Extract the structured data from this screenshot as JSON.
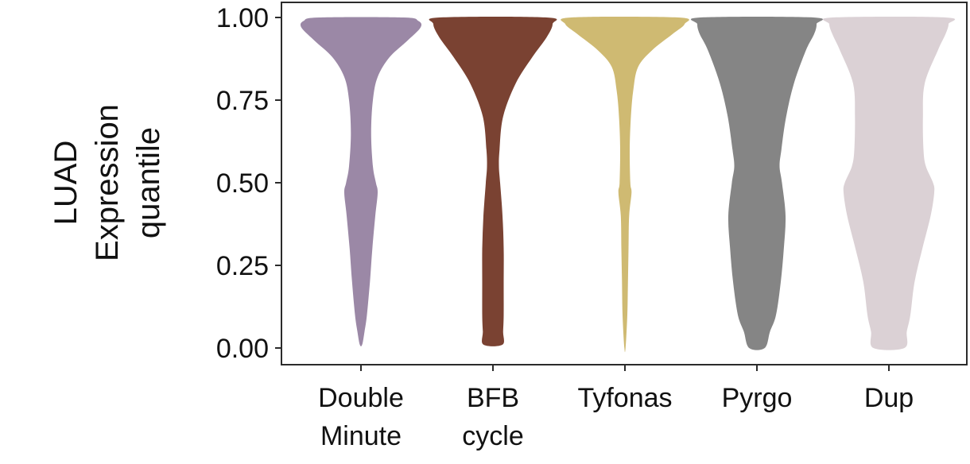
{
  "chart_data": {
    "type": "violin",
    "ylabel": [
      "LUAD",
      "Expression",
      "quantile"
    ],
    "ylim": [
      0,
      1
    ],
    "yticks": [
      "0.00",
      "0.25",
      "0.50",
      "0.75",
      "1.00"
    ],
    "grid": false,
    "categories": [
      [
        "Double",
        "Minute"
      ],
      [
        "BFB",
        "cycle"
      ],
      [
        "Tyfonas"
      ],
      [
        "Pyrgo"
      ],
      [
        "Dup"
      ]
    ],
    "colors": [
      "#9b88a6",
      "#7a4232",
      "#cfba72",
      "#858585",
      "#dbd1d5"
    ],
    "series": [
      {
        "min": 0.01,
        "max": 1.0,
        "profile": [
          [
            0.01,
            0.02
          ],
          [
            0.05,
            0.06
          ],
          [
            0.1,
            0.1
          ],
          [
            0.2,
            0.15
          ],
          [
            0.3,
            0.19
          ],
          [
            0.4,
            0.24
          ],
          [
            0.47,
            0.28
          ],
          [
            0.5,
            0.25
          ],
          [
            0.55,
            0.2
          ],
          [
            0.65,
            0.17
          ],
          [
            0.75,
            0.2
          ],
          [
            0.82,
            0.28
          ],
          [
            0.88,
            0.48
          ],
          [
            0.93,
            0.78
          ],
          [
            0.97,
            1.0
          ],
          [
            0.99,
            0.96
          ],
          [
            1.0,
            0.7
          ]
        ]
      },
      {
        "min": 0.01,
        "max": 1.0,
        "profile": [
          [
            0.01,
            0.16
          ],
          [
            0.05,
            0.17
          ],
          [
            0.1,
            0.18
          ],
          [
            0.2,
            0.18
          ],
          [
            0.3,
            0.18
          ],
          [
            0.4,
            0.16
          ],
          [
            0.5,
            0.12
          ],
          [
            0.55,
            0.1
          ],
          [
            0.6,
            0.11
          ],
          [
            0.7,
            0.17
          ],
          [
            0.8,
            0.38
          ],
          [
            0.88,
            0.66
          ],
          [
            0.94,
            0.9
          ],
          [
            0.98,
            1.0
          ],
          [
            1.0,
            0.9
          ]
        ]
      },
      {
        "min": 0.0,
        "max": 1.0,
        "profile": [
          [
            0.0,
            0.01
          ],
          [
            0.1,
            0.04
          ],
          [
            0.2,
            0.05
          ],
          [
            0.3,
            0.06
          ],
          [
            0.4,
            0.07
          ],
          [
            0.47,
            0.11
          ],
          [
            0.5,
            0.09
          ],
          [
            0.6,
            0.08
          ],
          [
            0.7,
            0.1
          ],
          [
            0.78,
            0.14
          ],
          [
            0.85,
            0.22
          ],
          [
            0.9,
            0.45
          ],
          [
            0.95,
            0.8
          ],
          [
            0.98,
            1.0
          ],
          [
            1.0,
            0.9
          ]
        ]
      },
      {
        "min": 0.0,
        "max": 1.0,
        "profile": [
          [
            0.0,
            0.13
          ],
          [
            0.05,
            0.22
          ],
          [
            0.1,
            0.32
          ],
          [
            0.2,
            0.4
          ],
          [
            0.3,
            0.45
          ],
          [
            0.4,
            0.48
          ],
          [
            0.5,
            0.42
          ],
          [
            0.55,
            0.38
          ],
          [
            0.6,
            0.41
          ],
          [
            0.7,
            0.49
          ],
          [
            0.8,
            0.62
          ],
          [
            0.9,
            0.82
          ],
          [
            0.95,
            0.96
          ],
          [
            0.98,
            1.0
          ],
          [
            1.0,
            0.95
          ]
        ]
      },
      {
        "min": 0.0,
        "max": 1.0,
        "profile": [
          [
            0.0,
            0.26
          ],
          [
            0.05,
            0.3
          ],
          [
            0.1,
            0.36
          ],
          [
            0.2,
            0.43
          ],
          [
            0.3,
            0.56
          ],
          [
            0.4,
            0.7
          ],
          [
            0.47,
            0.76
          ],
          [
            0.5,
            0.74
          ],
          [
            0.55,
            0.62
          ],
          [
            0.6,
            0.58
          ],
          [
            0.7,
            0.57
          ],
          [
            0.8,
            0.6
          ],
          [
            0.9,
            0.82
          ],
          [
            0.95,
            0.95
          ],
          [
            0.98,
            1.0
          ],
          [
            1.0,
            0.95
          ]
        ]
      }
    ]
  }
}
